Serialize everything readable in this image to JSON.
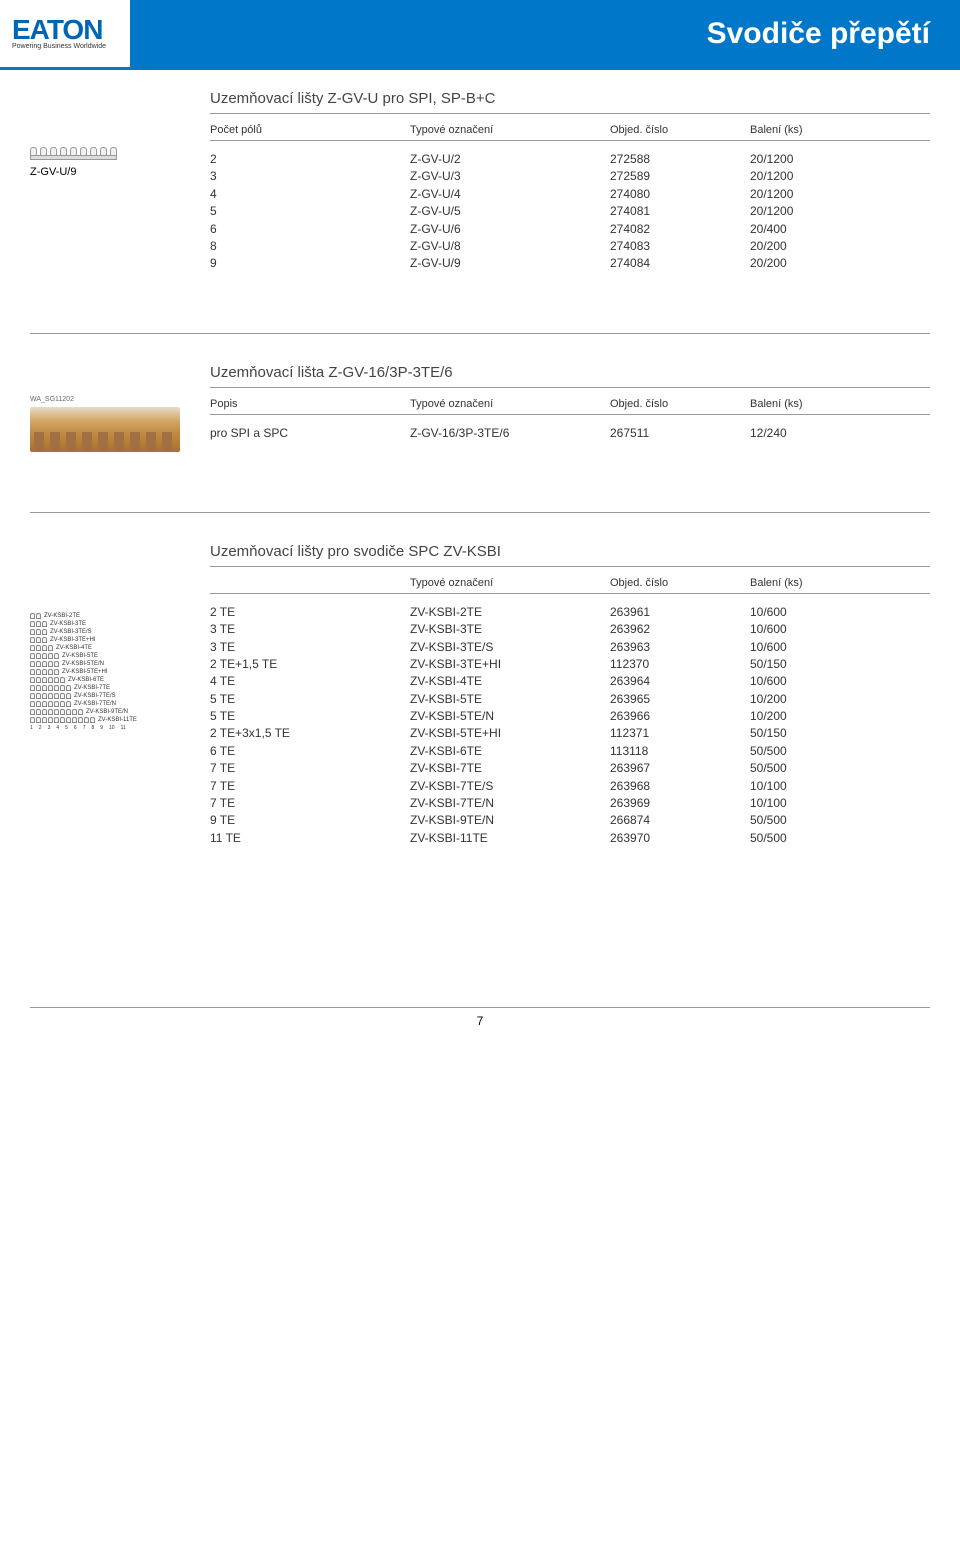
{
  "logo": {
    "brand": "EATON",
    "tagline": "Powering Business Worldwide"
  },
  "page_title": "Svodiče přepětí",
  "page_number": "7",
  "section1": {
    "title": "Uzemňovací lišty Z-GV-U pro SPI, SP-B+C",
    "left_label": "Z-GV-U/9",
    "headers": {
      "c1": "Počet pólů",
      "c2": "Typové označení",
      "c3": "Objed. číslo",
      "c4": "Balení (ks)"
    },
    "rows": [
      {
        "c1": "2",
        "c2": "Z-GV-U/2",
        "c3": "272588",
        "c4": "20/1200"
      },
      {
        "c1": "3",
        "c2": "Z-GV-U/3",
        "c3": "272589",
        "c4": "20/1200"
      },
      {
        "c1": "4",
        "c2": "Z-GV-U/4",
        "c3": "274080",
        "c4": "20/1200"
      },
      {
        "c1": "5",
        "c2": "Z-GV-U/5",
        "c3": "274081",
        "c4": "20/1200"
      },
      {
        "c1": "6",
        "c2": "Z-GV-U/6",
        "c3": "274082",
        "c4": "20/400"
      },
      {
        "c1": "8",
        "c2": "Z-GV-U/8",
        "c3": "274083",
        "c4": "20/200"
      },
      {
        "c1": "9",
        "c2": "Z-GV-U/9",
        "c3": "274084",
        "c4": "20/200"
      }
    ]
  },
  "section2": {
    "title": "Uzemňovací lišta Z-GV-16/3P-3TE/6",
    "img_ref": "WA_SG11202",
    "headers": {
      "c1": "Popis",
      "c2": "Typové označení",
      "c3": "Objed. číslo",
      "c4": "Balení (ks)"
    },
    "rows": [
      {
        "c1": "pro SPI a SPC",
        "c2": "Z-GV-16/3P-3TE/6",
        "c3": "267511",
        "c4": "12/240"
      }
    ]
  },
  "section3": {
    "title": "Uzemňovací lišty pro svodiče SPC ZV-KSBI",
    "headers": {
      "c1": "",
      "c2": "Typové označení",
      "c3": "Objed. číslo",
      "c4": "Balení (ks)"
    },
    "rows": [
      {
        "c1": "2 TE",
        "c2": "ZV-KSBI-2TE",
        "c3": "263961",
        "c4": "10/600"
      },
      {
        "c1": "3 TE",
        "c2": "ZV-KSBI-3TE",
        "c3": "263962",
        "c4": "10/600"
      },
      {
        "c1": "3 TE",
        "c2": "ZV-KSBI-3TE/S",
        "c3": "263963",
        "c4": "10/600"
      },
      {
        "c1": "2 TE+1,5 TE",
        "c2": "ZV-KSBI-3TE+HI",
        "c3": "112370",
        "c4": "50/150"
      },
      {
        "c1": "4 TE",
        "c2": "ZV-KSBI-4TE",
        "c3": "263964",
        "c4": "10/600"
      },
      {
        "c1": "5 TE",
        "c2": "ZV-KSBI-5TE",
        "c3": "263965",
        "c4": "10/200"
      },
      {
        "c1": "5 TE",
        "c2": "ZV-KSBI-5TE/N",
        "c3": "263966",
        "c4": "10/200"
      },
      {
        "c1": "2 TE+3x1,5 TE",
        "c2": "ZV-KSBI-5TE+HI",
        "c3": "112371",
        "c4": "50/150"
      },
      {
        "c1": "6 TE",
        "c2": "ZV-KSBI-6TE",
        "c3": "113118",
        "c4": "50/500"
      },
      {
        "c1": "7 TE",
        "c2": "ZV-KSBI-7TE",
        "c3": "263967",
        "c4": "50/500"
      },
      {
        "c1": "7 TE",
        "c2": "ZV-KSBI-7TE/S",
        "c3": "263968",
        "c4": "10/100"
      },
      {
        "c1": "7 TE",
        "c2": "ZV-KSBI-7TE/N",
        "c3": "263969",
        "c4": "10/100"
      },
      {
        "c1": "9 TE",
        "c2": "ZV-KSBI-9TE/N",
        "c3": "266874",
        "c4": "50/500"
      },
      {
        "c1": "11 TE",
        "c2": "ZV-KSBI-11TE",
        "c3": "263970",
        "c4": "50/500"
      }
    ],
    "left_labels": [
      "ZV-KSBI-2TE",
      "ZV-KSBI-3TE",
      "ZV-KSBI-3TE/S",
      "ZV-KSBI-3TE+HI",
      "ZV-KSBI-4TE",
      "ZV-KSBI-5TE",
      "ZV-KSBI-5TE/N",
      "ZV-KSBI-5TE+HI",
      "ZV-KSBI-6TE",
      "ZV-KSBI-7TE",
      "ZV-KSBI-7TE/S",
      "ZV-KSBI-7TE/N",
      "ZV-KSBI-9TE/N",
      "ZV-KSBI-11TE"
    ],
    "left_teeth": [
      2,
      3,
      3,
      3,
      4,
      5,
      5,
      5,
      6,
      7,
      7,
      7,
      9,
      11
    ],
    "ruler": [
      "1",
      "2",
      "3",
      "4",
      "5",
      "6",
      "7",
      "8",
      "9",
      "10",
      "11"
    ]
  },
  "colors": {
    "brand_blue": "#0077c8",
    "logo_blue": "#0066b3",
    "rule_gray": "#999999",
    "text": "#333333"
  }
}
